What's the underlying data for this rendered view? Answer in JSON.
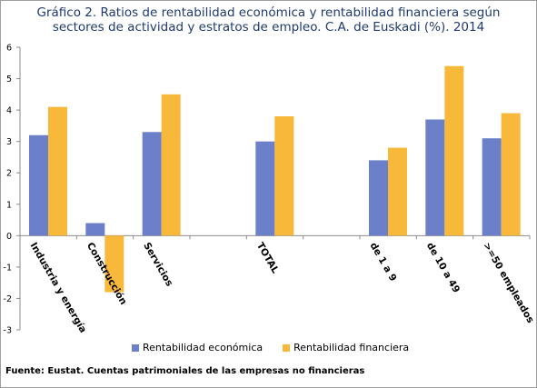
{
  "chart_data": {
    "type": "bar",
    "title_lines": [
      "Gráfico 2. Ratios de rentabilidad económica y  rentabilidad financiera según",
      "sectores de actividad y estratos de empleo. C.A. de Euskadi (%). 2014"
    ],
    "categories": [
      "Industria y energía",
      "Construcción",
      "Servicios",
      "",
      "TOTAL",
      "",
      "de 1 a 9",
      "de 10 a 49",
      ">=50 empleados"
    ],
    "series": [
      {
        "name": "Rentabilidad económica",
        "color": "#6b80c8",
        "values": [
          3.2,
          0.4,
          3.3,
          null,
          3.0,
          null,
          2.4,
          3.7,
          3.1
        ]
      },
      {
        "name": "Rentabilidad financiera",
        "color": "#f8b83a",
        "values": [
          4.1,
          -1.8,
          4.5,
          null,
          3.8,
          null,
          2.8,
          5.4,
          3.9
        ]
      }
    ],
    "ylim": [
      -3,
      6
    ],
    "yticks": [
      "6",
      "5",
      "4",
      "3",
      "2",
      "1",
      "0",
      "-1",
      "-2",
      "-3"
    ],
    "grid": false,
    "legend_position": "bottom"
  },
  "source_note": "Fuente: Eustat. Cuentas patrimoniales de las empresas no financieras"
}
